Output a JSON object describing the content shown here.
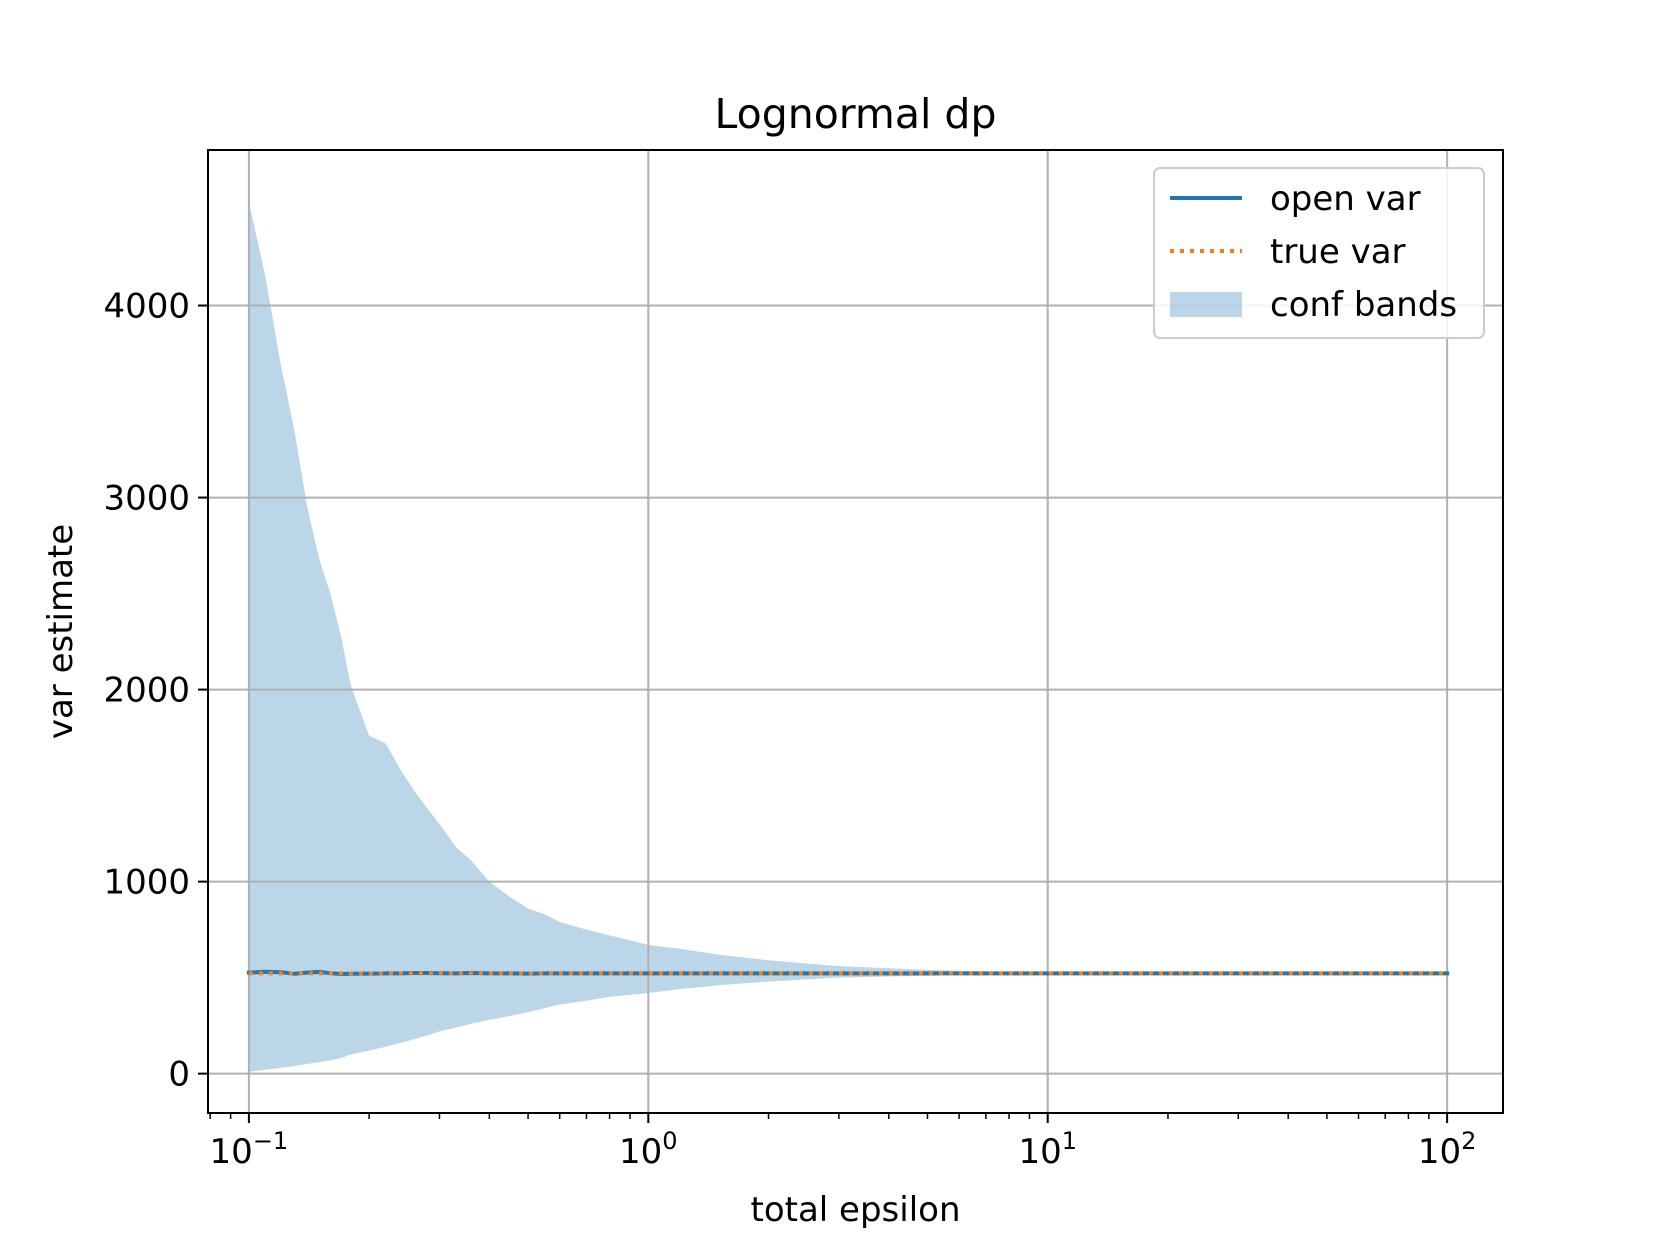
{
  "chart_data": {
    "type": "line",
    "title": "Lognormal dp",
    "xlabel": "total epsilon",
    "ylabel": "var estimate",
    "xscale": "log",
    "xlim": [
      0.079,
      138
    ],
    "ylim": [
      -205,
      4810
    ],
    "grid": true,
    "legend_position": "top-right",
    "x_ticks": [
      {
        "value": 0.1,
        "base": "10",
        "exp": "−1"
      },
      {
        "value": 1,
        "base": "10",
        "exp": "0"
      },
      {
        "value": 10,
        "base": "10",
        "exp": "1"
      },
      {
        "value": 100,
        "base": "10",
        "exp": "2"
      }
    ],
    "y_ticks": [
      {
        "value": 0,
        "label": "0"
      },
      {
        "value": 1000,
        "label": "1000"
      },
      {
        "value": 2000,
        "label": "2000"
      },
      {
        "value": 3000,
        "label": "3000"
      },
      {
        "value": 4000,
        "label": "4000"
      }
    ],
    "x": [
      0.1,
      0.11,
      0.12,
      0.13,
      0.14,
      0.15,
      0.16,
      0.17,
      0.18,
      0.2,
      0.22,
      0.24,
      0.26,
      0.28,
      0.3,
      0.33,
      0.36,
      0.4,
      0.45,
      0.5,
      0.55,
      0.6,
      0.7,
      0.8,
      0.9,
      1.0,
      1.2,
      1.5,
      2,
      3,
      5,
      7,
      10,
      20,
      50,
      100
    ],
    "series": [
      {
        "name": "open var",
        "color": "#1f77b4",
        "style": "solid",
        "values": [
          526,
          531,
          528,
          520,
          526,
          530,
          523,
          519,
          520,
          521,
          522,
          522,
          524,
          524,
          523,
          522,
          524,
          522,
          522,
          521,
          522,
          522,
          522,
          522,
          522,
          522,
          522,
          522,
          522,
          522,
          522,
          522,
          522,
          522,
          522,
          522
        ]
      },
      {
        "name": "true var",
        "color": "#ff7f0e",
        "style": "dotted",
        "values": [
          522,
          522,
          522,
          522,
          522,
          522,
          522,
          522,
          522,
          522,
          522,
          522,
          522,
          522,
          522,
          522,
          522,
          522,
          522,
          522,
          522,
          522,
          522,
          522,
          522,
          522,
          522,
          522,
          522,
          522,
          522,
          522,
          522,
          522,
          522,
          522
        ]
      }
    ],
    "band": {
      "name": "conf bands",
      "color": "#1f77b4",
      "opacity": 0.3,
      "upper": [
        4540,
        4150,
        3700,
        3350,
        2950,
        2680,
        2500,
        2280,
        2020,
        1760,
        1720,
        1580,
        1470,
        1380,
        1300,
        1180,
        1110,
        1000,
        920,
        860,
        830,
        790,
        750,
        720,
        695,
        670,
        650,
        620,
        590,
        560,
        540,
        532,
        526,
        524,
        523,
        522
      ],
      "lower": [
        10,
        20,
        30,
        40,
        50,
        60,
        70,
        80,
        100,
        120,
        140,
        160,
        180,
        200,
        220,
        240,
        260,
        280,
        300,
        320,
        340,
        360,
        380,
        400,
        410,
        420,
        440,
        460,
        480,
        500,
        510,
        515,
        518,
        520,
        521,
        522
      ]
    }
  }
}
